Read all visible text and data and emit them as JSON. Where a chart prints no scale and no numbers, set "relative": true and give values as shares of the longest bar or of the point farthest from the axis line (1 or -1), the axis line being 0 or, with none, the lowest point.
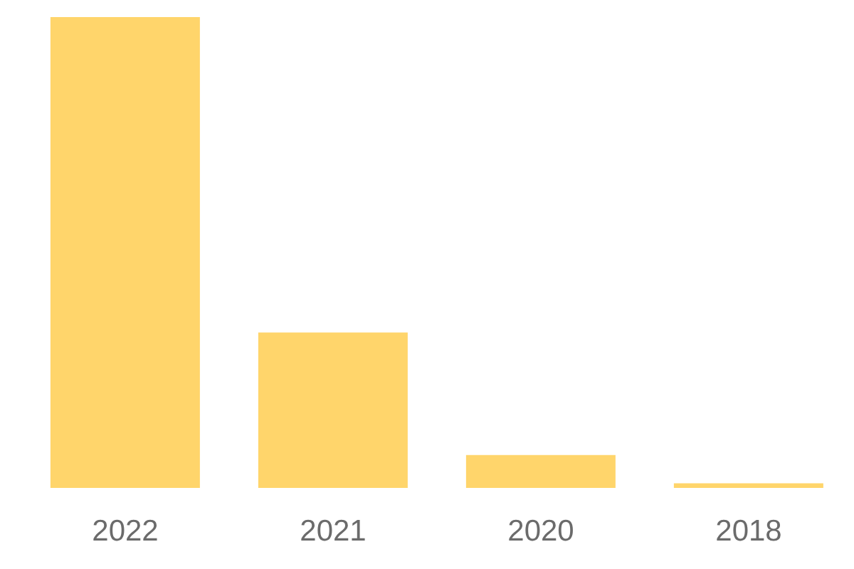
{
  "chart_data": {
    "type": "bar",
    "categories": [
      "2022",
      "2021",
      "2020",
      "2018"
    ],
    "values": [
      1,
      0.33,
      0.07,
      0.01
    ],
    "color": "#ffd56b",
    "relative": true,
    "grid": false,
    "legend": false
  }
}
